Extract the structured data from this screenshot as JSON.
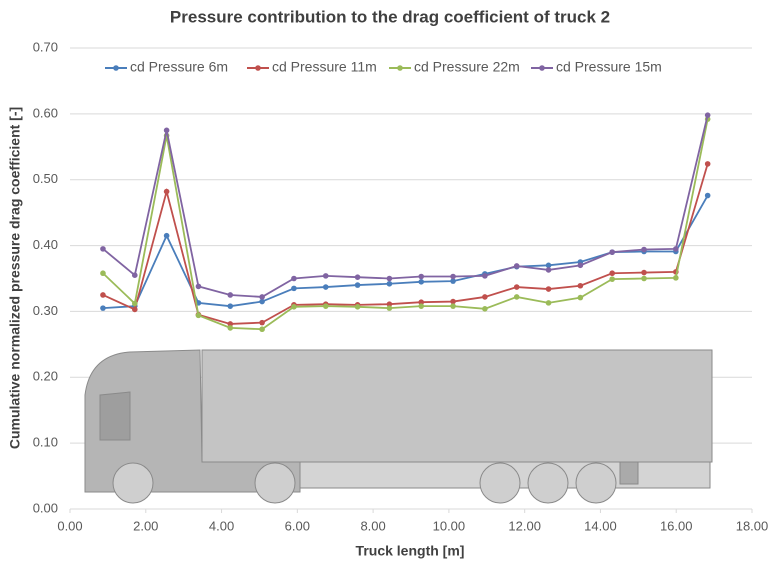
{
  "chart_data": {
    "type": "line",
    "title": "Pressure contribution to the drag coefficient of truck 2",
    "x_label": "Truck length [m]",
    "y_label": "Cumulative normalized pressure drag coefficient [-]",
    "x": [
      0.87,
      1.71,
      2.55,
      3.39,
      4.23,
      5.07,
      5.91,
      6.75,
      7.59,
      8.43,
      9.27,
      10.11,
      10.95,
      11.79,
      12.63,
      13.47,
      14.31,
      15.15,
      15.99,
      16.83
    ],
    "series": [
      {
        "name": "cd Pressure 6m",
        "color": "#4a7ebb",
        "values": [
          0.305,
          0.308,
          0.415,
          0.313,
          0.308,
          0.315,
          0.335,
          0.337,
          0.34,
          0.342,
          0.345,
          0.346,
          0.357,
          0.368,
          0.37,
          0.375,
          0.39,
          0.391,
          0.391,
          0.476
        ]
      },
      {
        "name": "cd Pressure 11m",
        "color": "#c0504d",
        "values": [
          0.325,
          0.303,
          0.482,
          0.295,
          0.281,
          0.283,
          0.31,
          0.311,
          0.31,
          0.311,
          0.314,
          0.315,
          0.322,
          0.337,
          0.334,
          0.339,
          0.358,
          0.359,
          0.36,
          0.524
        ]
      },
      {
        "name": "cd Pressure 22m",
        "color": "#9bbb59",
        "values": [
          0.358,
          0.312,
          0.567,
          0.294,
          0.275,
          0.273,
          0.307,
          0.308,
          0.307,
          0.305,
          0.308,
          0.308,
          0.304,
          0.322,
          0.313,
          0.321,
          0.349,
          0.35,
          0.351,
          0.592
        ]
      },
      {
        "name": "cd Pressure 15m",
        "color": "#8064a2",
        "values": [
          0.395,
          0.355,
          0.575,
          0.338,
          0.325,
          0.322,
          0.35,
          0.354,
          0.352,
          0.35,
          0.353,
          0.353,
          0.354,
          0.369,
          0.363,
          0.37,
          0.39,
          0.394,
          0.395,
          0.598
        ]
      }
    ],
    "xlim": [
      0,
      18
    ],
    "xticks": [
      {
        "value": 0,
        "label": "0.00"
      },
      {
        "value": 2,
        "label": "2.00"
      },
      {
        "value": 4,
        "label": "4.00"
      },
      {
        "value": 6,
        "label": "6.00"
      },
      {
        "value": 8,
        "label": "8.00"
      },
      {
        "value": 10,
        "label": "10.00"
      },
      {
        "value": 12,
        "label": "12.00"
      },
      {
        "value": 14,
        "label": "14.00"
      },
      {
        "value": 16,
        "label": "16.00"
      },
      {
        "value": 18,
        "label": "18.00"
      }
    ],
    "ylim": [
      0,
      0.7
    ],
    "yticks": [
      {
        "value": 0,
        "label": "0.00"
      },
      {
        "value": 0.1,
        "label": "0.10"
      },
      {
        "value": 0.2,
        "label": "0.20"
      },
      {
        "value": 0.3,
        "label": "0.30"
      },
      {
        "value": 0.4,
        "label": "0.40"
      },
      {
        "value": 0.5,
        "label": "0.50"
      },
      {
        "value": 0.6,
        "label": "0.60"
      },
      {
        "value": 0.7,
        "label": "0.70"
      }
    ],
    "grid": true
  }
}
